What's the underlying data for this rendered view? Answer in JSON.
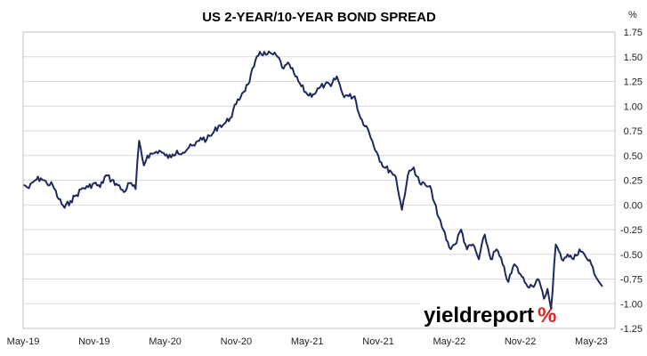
{
  "chart_data": {
    "type": "line",
    "title": "US 2-YEAR/10-YEAR BOND SPREAD",
    "xlabel": "",
    "ylabel": "",
    "y_unit": "%",
    "ylim": [
      -1.25,
      1.75
    ],
    "yticks": [
      1.75,
      1.5,
      1.25,
      1.0,
      0.75,
      0.5,
      0.25,
      0.0,
      -0.25,
      -0.5,
      -0.75,
      -1.0,
      -1.25
    ],
    "ytick_labels": [
      "1.75",
      "1.50",
      "1.25",
      "1.00",
      "0.75",
      "0.50",
      "0.25",
      "0.00",
      "-0.25",
      "-0.50",
      "-0.75",
      "-1.00",
      "-1.25"
    ],
    "x_tick_labels": [
      "May-19",
      "Nov-19",
      "May-20",
      "Nov-20",
      "May-21",
      "Nov-21",
      "May-22",
      "Nov-22",
      "May-23"
    ],
    "x_tick_months": [
      0,
      6,
      12,
      18,
      24,
      30,
      36,
      42,
      48
    ],
    "xlim_months": [
      0,
      50
    ],
    "y_axis_side": "right",
    "grid": true,
    "line_color": "#1f2a5c",
    "series": [
      {
        "x_months": [
          0.1,
          0.5,
          1.0,
          1.5,
          2.0,
          2.5,
          3.0,
          3.5,
          4.0,
          4.5,
          5.0,
          5.5,
          6.0,
          6.5,
          7.0,
          7.5,
          8.0,
          8.5,
          9.0,
          9.5,
          9.8,
          10.2,
          10.5,
          11.0,
          11.5,
          12.0,
          12.5,
          13.0,
          13.5,
          14.0,
          14.5,
          15.0,
          15.5,
          16.0,
          16.5,
          17.0,
          17.5,
          18.0,
          18.5,
          19.0,
          19.5,
          20.0,
          20.5,
          21.0,
          21.5,
          22.0,
          22.5,
          23.0,
          23.5,
          24.0,
          24.5,
          25.0,
          25.5,
          26.0,
          26.5,
          27.0,
          27.5,
          28.0,
          28.5,
          29.0,
          29.5,
          30.0,
          30.5,
          31.0,
          31.5,
          32.0,
          32.5,
          33.0,
          33.5,
          34.0,
          34.5,
          35.0,
          35.5,
          36.0,
          36.5,
          37.0,
          37.5,
          38.0,
          38.5,
          39.0,
          39.5,
          40.0,
          40.5,
          41.0,
          41.5,
          42.0,
          42.5,
          43.0,
          43.5,
          44.0,
          44.3,
          44.6,
          45.0,
          45.5,
          46.0,
          46.5,
          47.0,
          47.5,
          48.0,
          48.5,
          48.9
        ],
        "values": [
          0.2,
          0.17,
          0.25,
          0.27,
          0.22,
          0.2,
          0.06,
          -0.03,
          0.04,
          0.1,
          0.17,
          0.18,
          0.22,
          0.18,
          0.3,
          0.25,
          0.2,
          0.13,
          0.22,
          0.16,
          0.65,
          0.4,
          0.5,
          0.52,
          0.55,
          0.5,
          0.48,
          0.55,
          0.53,
          0.58,
          0.6,
          0.68,
          0.66,
          0.72,
          0.8,
          0.82,
          0.88,
          1.02,
          1.13,
          1.22,
          1.4,
          1.55,
          1.52,
          1.53,
          1.5,
          1.38,
          1.42,
          1.3,
          1.2,
          1.12,
          1.12,
          1.18,
          1.22,
          1.2,
          1.3,
          1.12,
          1.1,
          1.1,
          0.88,
          0.8,
          0.65,
          0.5,
          0.38,
          0.35,
          0.28,
          -0.05,
          0.3,
          0.38,
          0.22,
          0.2,
          0.15,
          -0.1,
          -0.25,
          -0.43,
          -0.4,
          -0.25,
          -0.45,
          -0.4,
          -0.55,
          -0.3,
          -0.55,
          -0.45,
          -0.6,
          -0.78,
          -0.6,
          -0.7,
          -0.8,
          -0.82,
          -0.75,
          -0.95,
          -0.85,
          -1.05,
          -0.4,
          -0.55,
          -0.5,
          -0.55,
          -0.45,
          -0.52,
          -0.6,
          -0.75,
          -0.82
        ]
      }
    ]
  },
  "branding": {
    "logo_main": "yieldreport",
    "logo_accent": "%",
    "logo_accent_colors": [
      "#2e8b3d",
      "#d42a2a"
    ]
  }
}
